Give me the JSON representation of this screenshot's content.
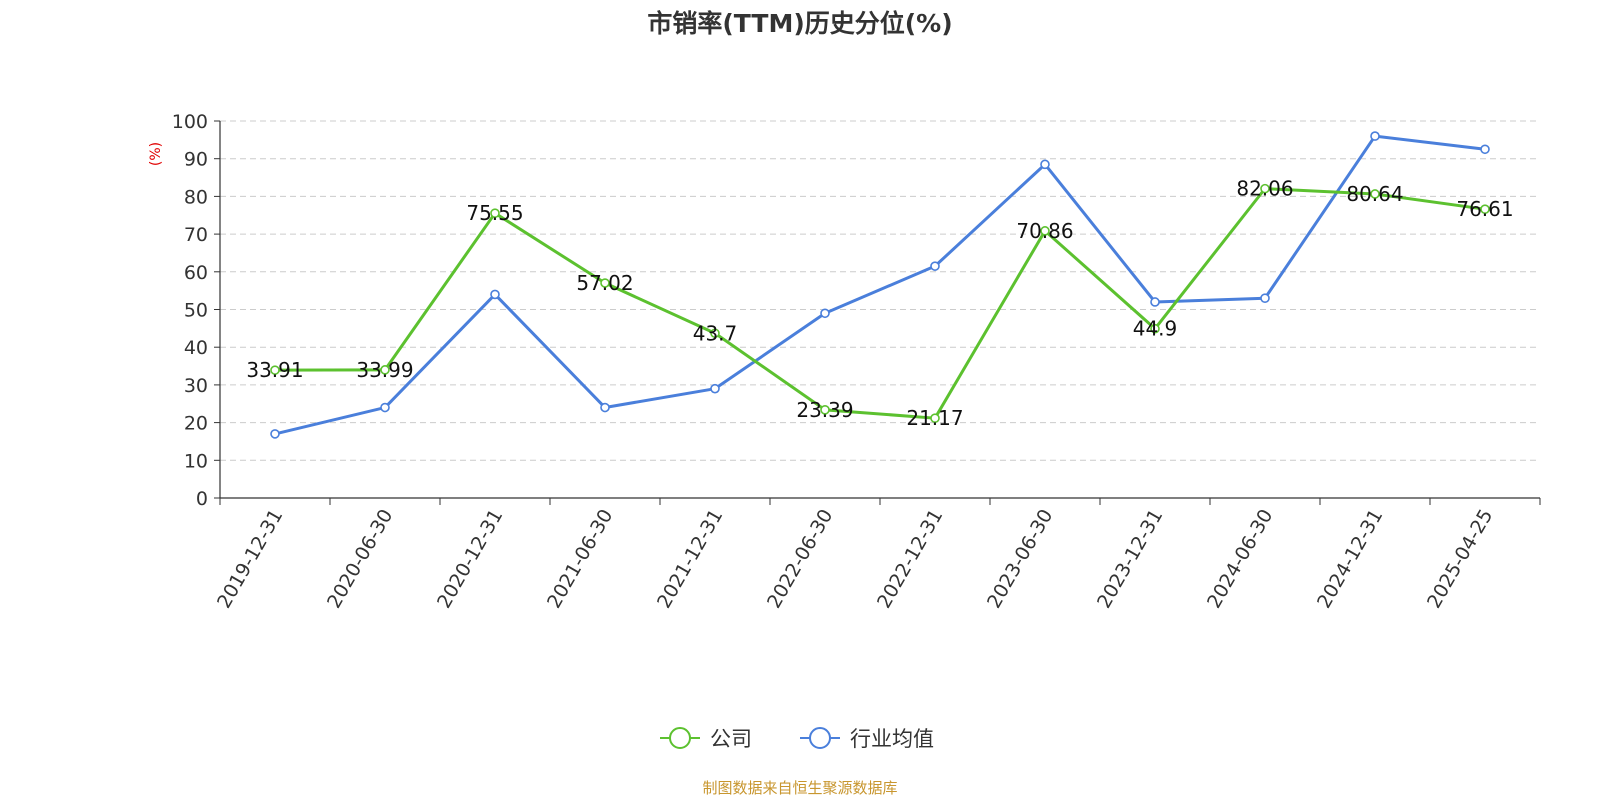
{
  "chart_data": {
    "type": "line",
    "title": "市销率(TTM)历史分位(%)",
    "ylabel": "(%)",
    "xlabel": "",
    "ylim": [
      0,
      100
    ],
    "yticks": [
      0,
      10,
      20,
      30,
      40,
      50,
      60,
      70,
      80,
      90,
      100
    ],
    "grid": true,
    "legend_position": "bottom-center",
    "categories": [
      "2019-12-31",
      "2020-06-30",
      "2020-12-31",
      "2021-06-30",
      "2021-12-31",
      "2022-06-30",
      "2022-12-31",
      "2023-06-30",
      "2023-12-31",
      "2024-06-30",
      "2024-12-31",
      "2025-04-25"
    ],
    "series": [
      {
        "name": "公司",
        "color": "#5cc12f",
        "show_labels": true,
        "values": [
          33.91,
          33.99,
          75.55,
          57.02,
          43.7,
          23.39,
          21.17,
          70.86,
          44.9,
          82.06,
          80.64,
          76.61
        ]
      },
      {
        "name": "行业均值",
        "color": "#4a7fdb",
        "show_labels": false,
        "values": [
          17,
          24,
          54,
          24,
          29,
          49,
          61.5,
          88.5,
          52,
          53,
          96,
          92.5
        ]
      }
    ],
    "source": "制图数据来自恒生聚源数据库"
  }
}
